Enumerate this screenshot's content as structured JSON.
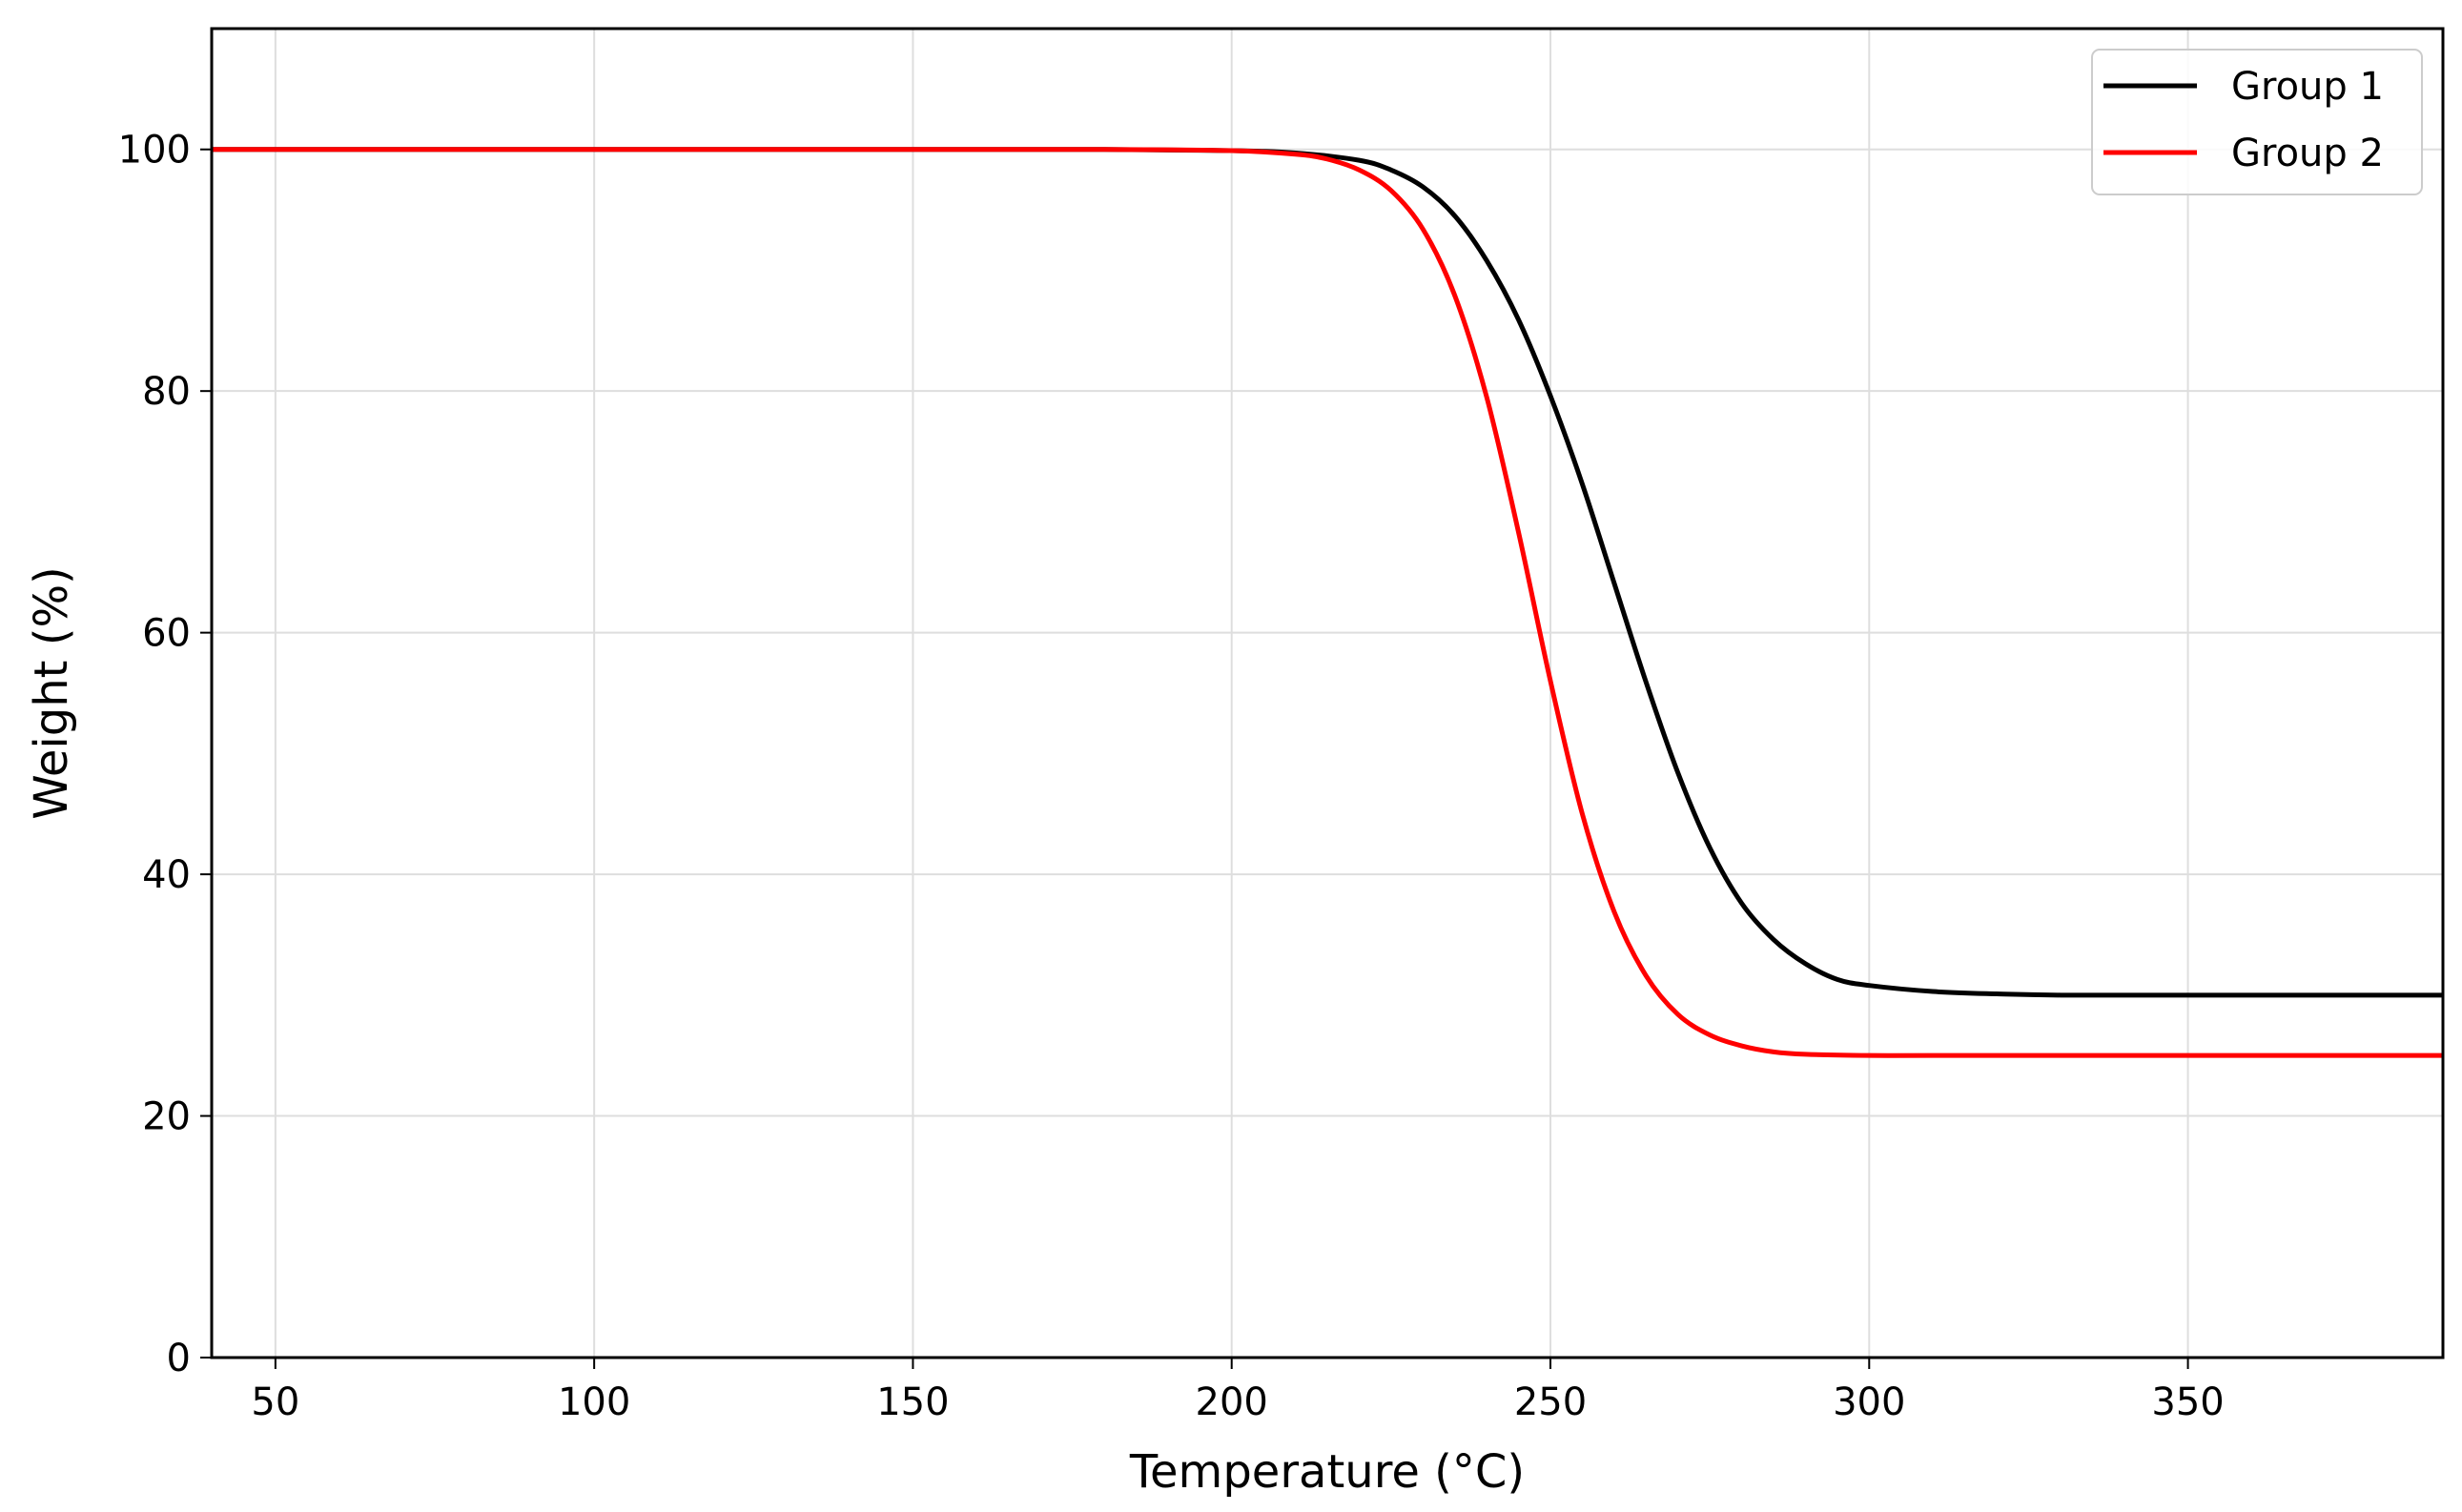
{
  "chart_data": {
    "type": "line",
    "title": "",
    "xlabel": "Temperature (°C)",
    "ylabel": "Weight (%)",
    "xlim": [
      40,
      390
    ],
    "ylim": [
      0,
      110
    ],
    "xticks": [
      50,
      100,
      150,
      200,
      250,
      300,
      350
    ],
    "yticks": [
      0,
      20,
      40,
      60,
      80,
      100
    ],
    "grid": true,
    "legend_position": "top-right",
    "series": [
      {
        "name": "Group 1",
        "color": "#000000",
        "x": [
          40,
          100,
          150,
          180,
          200,
          210,
          220,
          225,
          230,
          235,
          240,
          245,
          250,
          255,
          260,
          265,
          270,
          275,
          280,
          285,
          290,
          295,
          300,
          310,
          320,
          330,
          350,
          390
        ],
        "y": [
          100,
          100,
          100,
          100,
          99.9,
          99.7,
          99.1,
          98.3,
          96.9,
          94.5,
          90.8,
          85.9,
          79.6,
          72.3,
          64.1,
          55.9,
          48.4,
          42.2,
          37.6,
          34.6,
          32.6,
          31.3,
          30.8,
          30.3,
          30.1,
          30.0,
          30.0,
          30.0
        ]
      },
      {
        "name": "Group 2",
        "color": "#ff0000",
        "x": [
          40,
          100,
          150,
          180,
          200,
          210,
          215,
          220,
          225,
          230,
          235,
          240,
          245,
          250,
          255,
          260,
          265,
          270,
          275,
          280,
          285,
          290,
          300,
          310,
          330,
          390
        ],
        "y": [
          100,
          100,
          100,
          100,
          99.9,
          99.6,
          99.2,
          98.3,
          96.6,
          93.4,
          87.9,
          79.5,
          68.3,
          56.0,
          45.0,
          36.9,
          31.6,
          28.4,
          26.7,
          25.8,
          25.3,
          25.1,
          25.0,
          25.0,
          25.0,
          25.0
        ]
      }
    ]
  }
}
